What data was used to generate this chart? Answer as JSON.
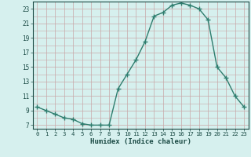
{
  "x": [
    0,
    1,
    2,
    3,
    4,
    5,
    6,
    7,
    8,
    9,
    10,
    11,
    12,
    13,
    14,
    15,
    16,
    17,
    18,
    19,
    20,
    21,
    22,
    23
  ],
  "y": [
    9.5,
    9.0,
    8.5,
    8.0,
    7.8,
    7.2,
    7.0,
    7.0,
    7.0,
    12.0,
    14.0,
    16.0,
    18.5,
    22.0,
    22.5,
    23.5,
    23.8,
    23.5,
    23.0,
    21.5,
    15.0,
    13.5,
    11.0,
    9.5
  ],
  "line_color": "#2e7d6e",
  "bg_color": "#d6f0ee",
  "grid_color_v": "#c8a8a8",
  "grid_color_h": "#c8a8a8",
  "xlabel": "Humidex (Indice chaleur)",
  "xlim": [
    -0.5,
    23.5
  ],
  "ylim": [
    6.5,
    24.0
  ],
  "yticks": [
    7,
    9,
    11,
    13,
    15,
    17,
    19,
    21,
    23
  ],
  "xticks": [
    0,
    1,
    2,
    3,
    4,
    5,
    6,
    7,
    8,
    9,
    10,
    11,
    12,
    13,
    14,
    15,
    16,
    17,
    18,
    19,
    20,
    21,
    22,
    23
  ],
  "marker": "+",
  "marker_size": 4,
  "line_width": 1.0
}
